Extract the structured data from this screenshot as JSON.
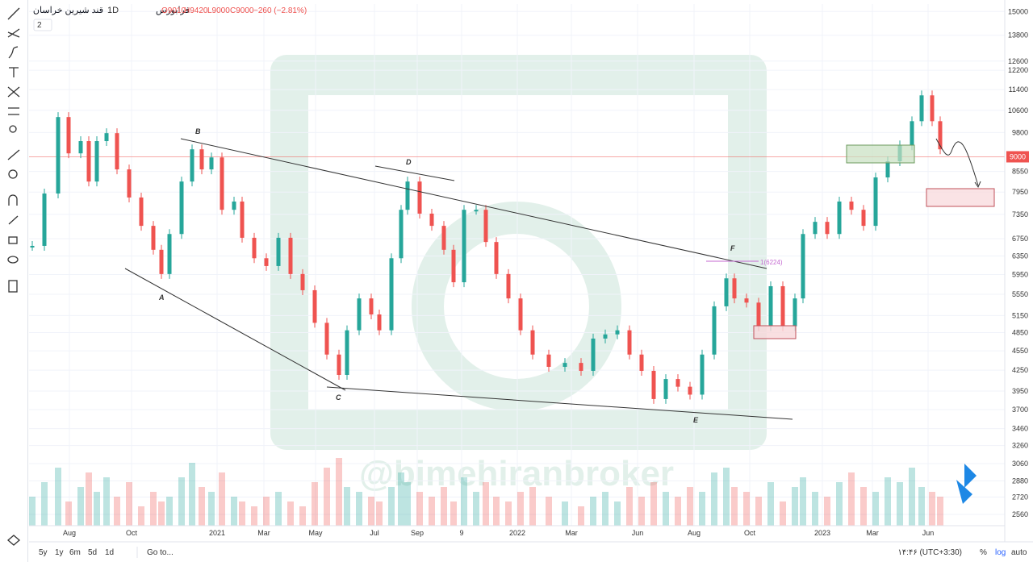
{
  "header": {
    "symbol": "قند شیرین خراسان",
    "interval": "1D",
    "exchange": "فرابورس",
    "open": "O9010",
    "high": "H9420",
    "low": "L9000",
    "close": "C9000",
    "change": "−260 (−2.81%)",
    "indicators_count": "2"
  },
  "chart_data": {
    "type": "candlestick",
    "scale": "log",
    "watermark": "@bimehiranbroker",
    "x": [
      4,
      19,
      36,
      49,
      64,
      74,
      84,
      96,
      109,
      124,
      139,
      154,
      164,
      174,
      189,
      202,
      214,
      226,
      239,
      254,
      264,
      279,
      294,
      309,
      324,
      339,
      354,
      369,
      384,
      394,
      409,
      424,
      434,
      449,
      461,
      469,
      484,
      499,
      514,
      526,
      539,
      554,
      566,
      579,
      594,
      609,
      624,
      644,
      664,
      684,
      699,
      714,
      729,
      744,
      759,
      774,
      789,
      804,
      819,
      834,
      849,
      864,
      874,
      889,
      904,
      919,
      934,
      949,
      959,
      974,
      989,
      1004,
      1019,
      1034,
      1049,
      1064,
      1079,
      1094,
      1106,
      1119,
      1129
    ],
    "values": [
      6580,
      7910,
      10350,
      9110,
      9510,
      8250,
      9510,
      9780,
      8610,
      7800,
      7060,
      6490,
      5960,
      6860,
      8250,
      9240,
      8610,
      8980,
      7470,
      7690,
      6770,
      6300,
      6130,
      6770,
      5960,
      5630,
      5020,
      4490,
      4180,
      4890,
      5470,
      5170,
      4890,
      6300,
      7470,
      8250,
      7370,
      7060,
      6490,
      5790,
      7470,
      7470,
      6670,
      5960,
      5470,
      4890,
      4490,
      4300,
      4360,
      4240,
      4750,
      4820,
      4890,
      4490,
      4240,
      3840,
      4120,
      4010,
      3900,
      4490,
      5320,
      5870,
      5470,
      5390,
      4960,
      5710,
      4960,
      5470,
      6860,
      7160,
      6860,
      7690,
      7470,
      7060,
      8370,
      8860,
      9370,
      10200,
      11170,
      10200,
      9240
    ],
    "volume": [
      30,
      45,
      60,
      25,
      40,
      55,
      35,
      50,
      30,
      45,
      20,
      35,
      25,
      30,
      50,
      65,
      40,
      35,
      55,
      30,
      25,
      20,
      30,
      35,
      25,
      20,
      45,
      60,
      70,
      40,
      35,
      30,
      25,
      40,
      55,
      45,
      35,
      30,
      40,
      25,
      50,
      35,
      45,
      30,
      25,
      35,
      40,
      30,
      25,
      20,
      30,
      35,
      25,
      40,
      30,
      45,
      35,
      30,
      40,
      35,
      55,
      60,
      40,
      35,
      30,
      45,
      25,
      40,
      50,
      35,
      30,
      45,
      55,
      40,
      35,
      50,
      45,
      60,
      40,
      35,
      30
    ],
    "xlim": [
      0,
      1209
    ],
    "ylim": [
      2460,
      15400
    ],
    "y2lim": [
      0,
      100
    ],
    "xticks": [
      {
        "value": 50,
        "label": "Aug"
      },
      {
        "value": 127,
        "label": "Oct"
      },
      {
        "value": 233,
        "label": "2021"
      },
      {
        "value": 291,
        "label": "Mar"
      },
      {
        "value": 355,
        "label": "May"
      },
      {
        "value": 428,
        "label": "Jul"
      },
      {
        "value": 481,
        "label": "Sep"
      },
      {
        "value": 536,
        "label": "9"
      },
      {
        "value": 605,
        "label": "2022"
      },
      {
        "value": 672,
        "label": "Mar"
      },
      {
        "value": 754,
        "label": "Jun"
      },
      {
        "value": 824,
        "label": "Aug"
      },
      {
        "value": 893,
        "label": "Oct"
      },
      {
        "value": 983,
        "label": "2023"
      },
      {
        "value": 1045,
        "label": "Mar"
      },
      {
        "value": 1114,
        "label": "Jun"
      }
    ],
    "yticks": [
      15000,
      13800,
      12600,
      12200,
      11400,
      10600,
      9800,
      8550,
      7950,
      7350,
      6750,
      6350,
      5950,
      5550,
      5150,
      4850,
      4550,
      4250,
      3950,
      3700,
      3460,
      3260,
      3060,
      2880,
      2720,
      2560
    ],
    "last_price": 9000,
    "up_color": "#26a69a",
    "down_color": "#ef5350",
    "annotations": [
      "A",
      "B",
      "C",
      "D",
      "E",
      "F",
      "1(6224)"
    ]
  },
  "footer": {
    "ranges": [
      "5y",
      "1y",
      "6m",
      "5d",
      "1d"
    ],
    "goto": "Go to...",
    "time": "۱۴:۴۶ (UTC+3:30)",
    "percent": "%",
    "log": "log",
    "auto": "auto"
  }
}
